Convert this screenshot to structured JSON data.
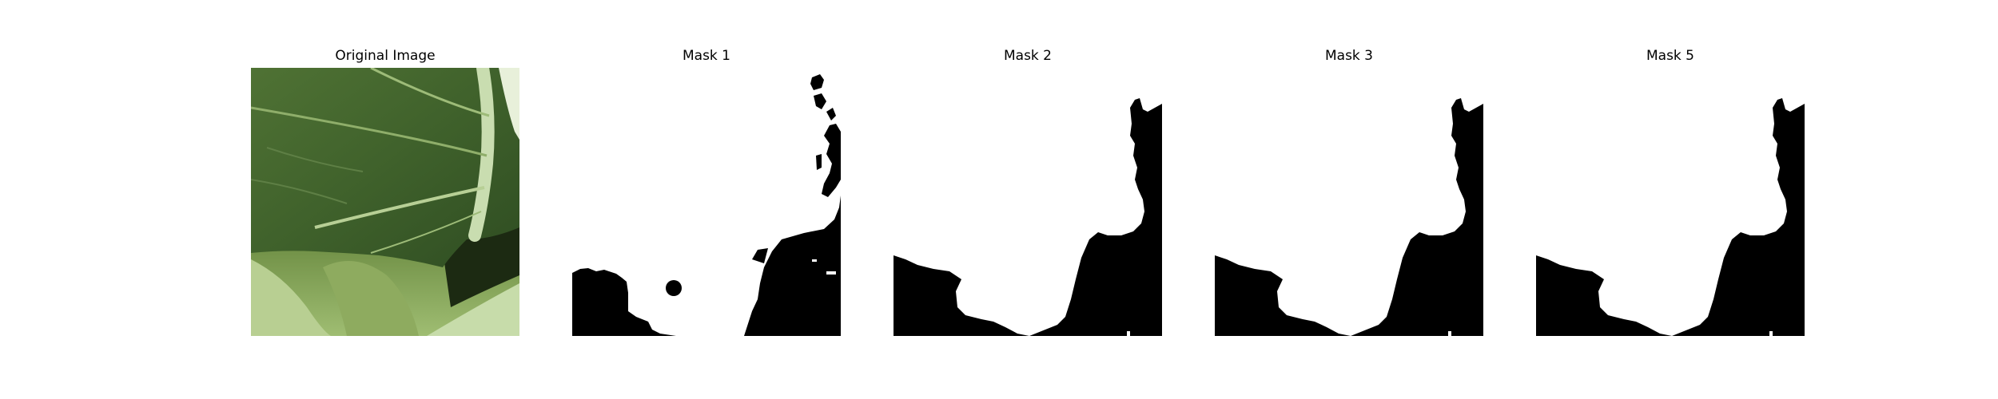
{
  "panels": [
    {
      "title": "Original Image",
      "kind": "photo",
      "subject": "green leaf close-up"
    },
    {
      "title": "Mask 1",
      "kind": "mask"
    },
    {
      "title": "Mask 2",
      "kind": "mask"
    },
    {
      "title": "Mask 3",
      "kind": "mask"
    },
    {
      "title": "Mask 5",
      "kind": "mask"
    }
  ],
  "colors": {
    "background": "#ffffff",
    "mask_foreground": "#ffffff",
    "mask_background": "#000000",
    "leaf_dark": "#3f5e2c",
    "leaf_mid": "#5a7d3a",
    "leaf_vein": "#c9ddb0"
  }
}
